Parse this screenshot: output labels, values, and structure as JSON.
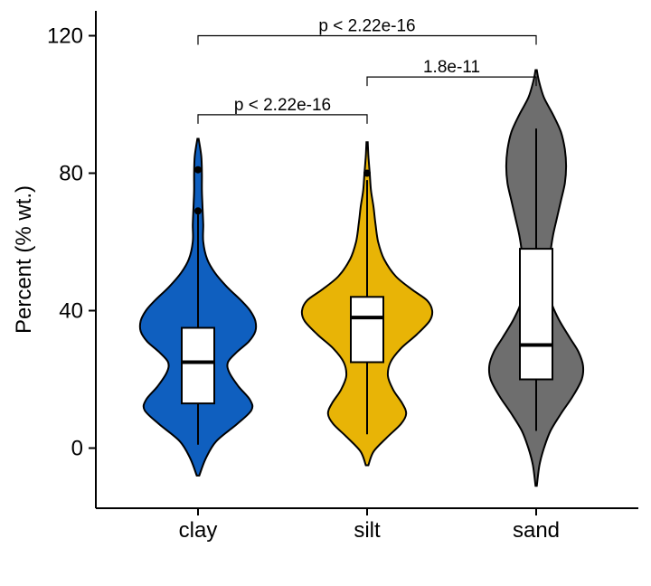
{
  "chart_data": {
    "type": "violin",
    "title": "",
    "xlabel": "",
    "ylabel": "Percent (% wt.)",
    "ylim": [
      -17,
      126
    ],
    "yticks": [
      0,
      40,
      80,
      120
    ],
    "grid": false,
    "legend": "none",
    "categories": [
      "clay",
      "silt",
      "sand"
    ],
    "groups": [
      {
        "name": "clay",
        "color": "#0F5FBF",
        "box": {
          "min": 1,
          "q1": 13,
          "median": 25,
          "q3": 35,
          "max": 68
        },
        "outliers": [
          69,
          81
        ],
        "violin": {
          "y_min": -8,
          "y_max": 90,
          "profile": [
            [
              -8,
              0.02
            ],
            [
              -3,
              0.12
            ],
            [
              2,
              0.28
            ],
            [
              7,
              0.6
            ],
            [
              11,
              0.82
            ],
            [
              14,
              0.8
            ],
            [
              18,
              0.62
            ],
            [
              22,
              0.48
            ],
            [
              25,
              0.46
            ],
            [
              28,
              0.6
            ],
            [
              31,
              0.78
            ],
            [
              34,
              0.88
            ],
            [
              37,
              0.88
            ],
            [
              40,
              0.8
            ],
            [
              43,
              0.66
            ],
            [
              47,
              0.44
            ],
            [
              51,
              0.26
            ],
            [
              55,
              0.14
            ],
            [
              60,
              0.08
            ],
            [
              65,
              0.08
            ],
            [
              70,
              0.07
            ],
            [
              75,
              0.06
            ],
            [
              80,
              0.06
            ],
            [
              85,
              0.05
            ],
            [
              90,
              0.01
            ]
          ]
        }
      },
      {
        "name": "silt",
        "color": "#E8B406",
        "box": {
          "min": 4,
          "q1": 25,
          "median": 38,
          "q3": 44,
          "max": 78
        },
        "outliers": [
          80
        ],
        "violin": {
          "y_min": -5,
          "y_max": 89,
          "profile": [
            [
              -5,
              0.02
            ],
            [
              -1,
              0.1
            ],
            [
              3,
              0.3
            ],
            [
              7,
              0.52
            ],
            [
              10,
              0.6
            ],
            [
              13,
              0.54
            ],
            [
              17,
              0.4
            ],
            [
              21,
              0.32
            ],
            [
              25,
              0.36
            ],
            [
              29,
              0.52
            ],
            [
              33,
              0.76
            ],
            [
              37,
              0.96
            ],
            [
              40,
              1.0
            ],
            [
              43,
              0.92
            ],
            [
              46,
              0.7
            ],
            [
              50,
              0.44
            ],
            [
              55,
              0.26
            ],
            [
              60,
              0.17
            ],
            [
              65,
              0.13
            ],
            [
              70,
              0.1
            ],
            [
              75,
              0.06
            ],
            [
              80,
              0.04
            ],
            [
              85,
              0.02
            ],
            [
              89,
              0.01
            ]
          ]
        }
      },
      {
        "name": "sand",
        "color": "#6E6E6E",
        "box": {
          "min": 5,
          "q1": 20,
          "median": 30,
          "q3": 58,
          "max": 93
        },
        "outliers": [],
        "violin": {
          "y_min": -11,
          "y_max": 110,
          "profile": [
            [
              -11,
              0.01
            ],
            [
              -5,
              0.05
            ],
            [
              0,
              0.12
            ],
            [
              5,
              0.22
            ],
            [
              10,
              0.38
            ],
            [
              15,
              0.56
            ],
            [
              20,
              0.7
            ],
            [
              24,
              0.72
            ],
            [
              28,
              0.65
            ],
            [
              32,
              0.52
            ],
            [
              37,
              0.36
            ],
            [
              42,
              0.24
            ],
            [
              47,
              0.2
            ],
            [
              52,
              0.2
            ],
            [
              57,
              0.22
            ],
            [
              62,
              0.26
            ],
            [
              67,
              0.32
            ],
            [
              72,
              0.38
            ],
            [
              77,
              0.44
            ],
            [
              82,
              0.46
            ],
            [
              87,
              0.44
            ],
            [
              92,
              0.38
            ],
            [
              97,
              0.26
            ],
            [
              102,
              0.12
            ],
            [
              107,
              0.04
            ],
            [
              110,
              0.01
            ]
          ]
        }
      }
    ],
    "comparisons": [
      {
        "group1": "clay",
        "group2": "silt",
        "label": "p < 2.22e-16",
        "y": 97
      },
      {
        "group1": "silt",
        "group2": "sand",
        "label": "1.8e-11",
        "y": 108
      },
      {
        "group1": "clay",
        "group2": "sand",
        "label": "p < 2.22e-16",
        "y": 120
      }
    ]
  }
}
